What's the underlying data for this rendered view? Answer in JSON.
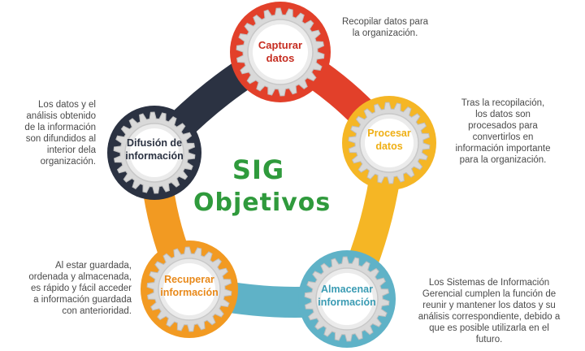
{
  "center": {
    "line1": "SIG",
    "line2": "Objetivos"
  },
  "colors": {
    "red": "#e2402a",
    "yellow": "#f5b625",
    "teal": "#5fb2c7",
    "orange": "#f29a22",
    "navy": "#2b3242",
    "green": "#2f9a3c"
  },
  "stages": [
    {
      "id": "capturar",
      "title": "Capturar datos",
      "text_color": "#c62d21",
      "description": "Recopilar datos para la organización."
    },
    {
      "id": "procesar",
      "title": "Procesar datos",
      "text_color": "#efaf14",
      "description": "Tras la recopilación, los datos son procesados para convertirlos en información importante para la organización."
    },
    {
      "id": "almacenar",
      "title": "Almacenar información",
      "text_color": "#3a9bb3",
      "description": "Los Sistemas de Información Gerencial cumplen la función de reunir y mantener los datos y su análisis correspondiente, debido a que es posible utilizarla en el futuro."
    },
    {
      "id": "recuperar",
      "title": "Recuperar información",
      "text_color": "#e8891a",
      "description": "Al estar guardada, ordenada y almacenada, es rápido y fácil acceder a información guardada con anterioridad."
    },
    {
      "id": "difusion",
      "title": "Difusión de información",
      "text_color": "#2b3242",
      "description": "Los datos y el análisis obtenido de la información son difundidos al interior dela organización."
    }
  ]
}
